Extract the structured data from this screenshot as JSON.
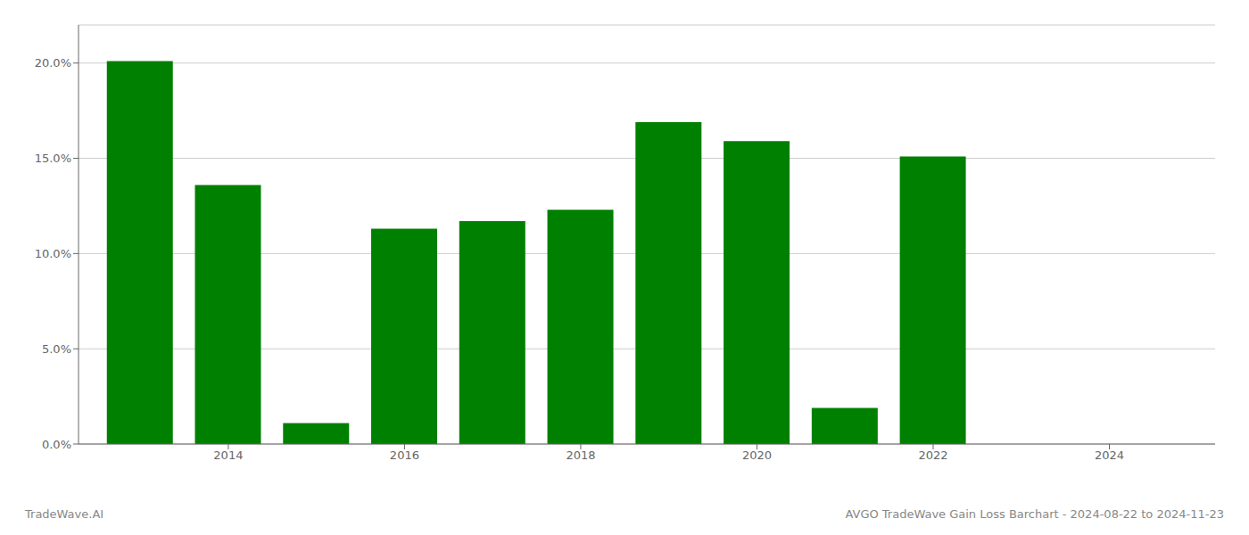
{
  "chart_data": {
    "type": "bar",
    "title": "AVGO TradeWave Gain Loss Barchart - 2024-08-22 to 2024-11-23",
    "annotations": [
      "TradeWave.AI"
    ],
    "x": [
      2013,
      2014,
      2015,
      2016,
      2017,
      2018,
      2019,
      2020,
      2021,
      2022
    ],
    "values": [
      0.201,
      0.136,
      0.011,
      0.113,
      0.117,
      0.123,
      0.169,
      0.159,
      0.019,
      0.151
    ],
    "color": "#008000",
    "xlim": [
      2012.3,
      2025.2
    ],
    "xticks": [
      2014,
      2016,
      2018,
      2020,
      2022,
      2024
    ],
    "ylim": [
      0,
      0.22
    ],
    "yticks": [
      {
        "value": 0.0,
        "label": "0.0%"
      },
      {
        "value": 0.05,
        "label": "5.0%"
      },
      {
        "value": 0.1,
        "label": "10.0%"
      },
      {
        "value": 0.15,
        "label": "15.0%"
      },
      {
        "value": 0.2,
        "label": "20.0%"
      }
    ],
    "grid": true
  }
}
